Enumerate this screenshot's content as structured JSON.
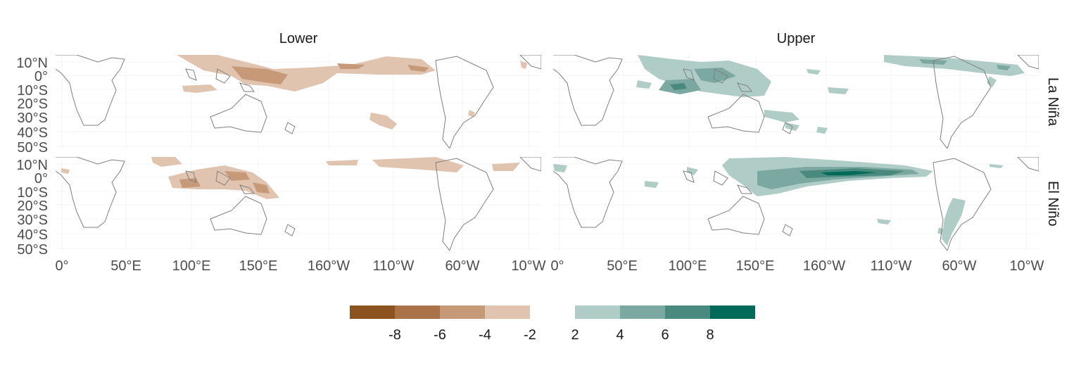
{
  "columns": [
    "Lower",
    "Upper"
  ],
  "rows": [
    "La Niña",
    "El Niño"
  ],
  "lat_labels": [
    "10°N",
    "0°",
    "10°S",
    "20°S",
    "30°S",
    "40°S",
    "50°S"
  ],
  "lon_labels": [
    "0°",
    "50°E",
    "100°E",
    "150°E",
    "160°W",
    "110°W",
    "60°W",
    "10°W"
  ],
  "legend": {
    "negative": {
      "labels": [
        "-8",
        "-6",
        "-4",
        "-2"
      ],
      "colors": [
        "#8c5220",
        "#a97248",
        "#c69a79",
        "#e0c4b0"
      ]
    },
    "positive": {
      "labels": [
        "2",
        "4",
        "6",
        "8"
      ],
      "colors": [
        "#b0ccc7",
        "#7ba8a0",
        "#4a897e",
        "#016a5b"
      ]
    }
  },
  "colors": {
    "land_outline": "#7f7f7f",
    "grid": "#ebebeb"
  }
}
